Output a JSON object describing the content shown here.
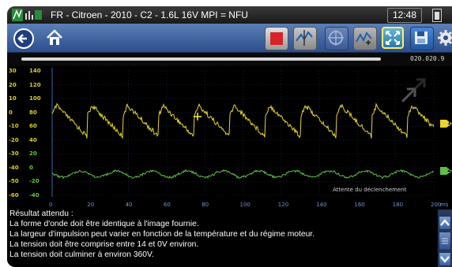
{
  "title": {
    "text": "FR - Citroen - 2010 - C2 - 1.6L 16V MPI = NFU",
    "clock": "12:48"
  },
  "toolbar": {
    "buttons": [
      "back-icon",
      "home-icon",
      "stop-icon",
      "trigger-icon",
      "cursor-icon",
      "zoom-icon",
      "fit-icon",
      "save-icon",
      "settings-icon"
    ]
  },
  "strip": {
    "value": "020.020.9"
  },
  "scope": {
    "left_axis_labels": [
      "30",
      "20",
      "10",
      "0",
      "-10",
      "-20",
      "-30",
      "-40",
      "-50",
      "-60"
    ],
    "left_axis2_labels": [
      "140",
      "120",
      "100",
      "80",
      "60",
      "40",
      "20",
      "0",
      "-20",
      "-40"
    ],
    "x_ticks": [
      "0",
      "20",
      "40",
      "60",
      "80",
      "100",
      "120",
      "140",
      "160",
      "180",
      "200"
    ],
    "x_unit": "ms",
    "status": "Attente du déclenchement",
    "channel1_marker": "1",
    "channel2_marker": "2",
    "colors": {
      "channel1": "#e6d530",
      "channel2": "#5fbf46",
      "grid": "#3b5fa8",
      "axis_text": "#6f95d8"
    }
  },
  "results": {
    "lines": [
      "Résultat attendu :",
      "La forme d'onde doit être identique à l'image fournie.",
      "La largeur d'impulsion peut varier en fonction de la température et du régime moteur.",
      "La tension doit être comprise entre 14 et 0V environ.",
      "La tension doit culminer à environ 360V."
    ]
  }
}
